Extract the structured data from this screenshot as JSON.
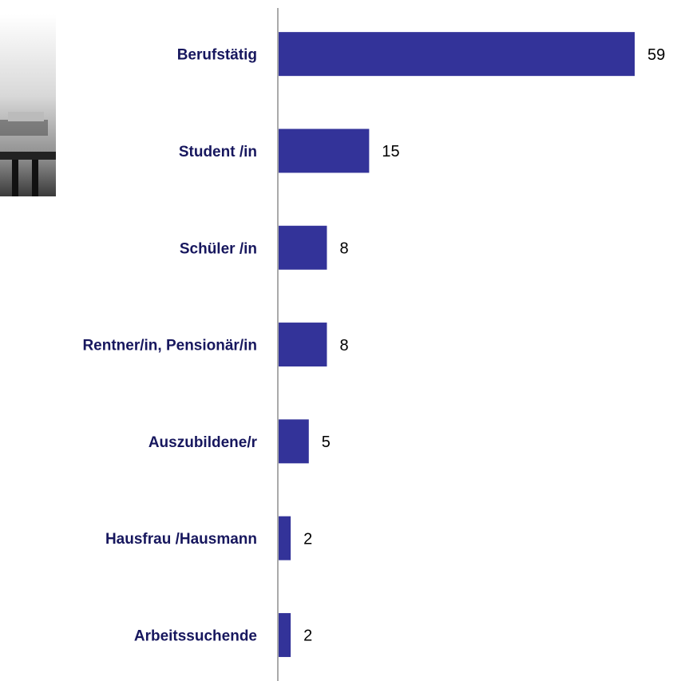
{
  "chart_data": {
    "type": "bar",
    "orientation": "horizontal",
    "categories": [
      "Berufstätig",
      "Student /in",
      "Schüler /in",
      "Rentner/in, Pensionär/in",
      "Auszubildene/r",
      "Hausfrau /Hausmann",
      "Arbeitssuchende"
    ],
    "values": [
      59,
      15,
      8,
      8,
      5,
      2,
      2
    ],
    "color": "#333399"
  }
}
